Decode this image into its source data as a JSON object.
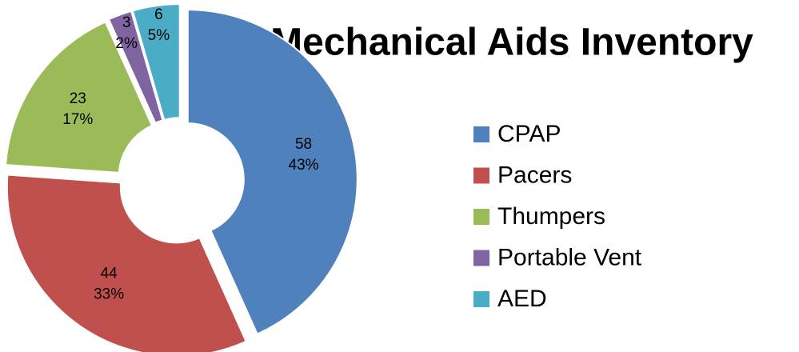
{
  "chart_data": {
    "type": "donut",
    "title": "Mechanical Aids Inventory",
    "categories": [
      "CPAP",
      "Pacers",
      "Thumpers",
      "Portable Vent",
      "AED"
    ],
    "values": [
      58,
      44,
      23,
      3,
      6
    ],
    "percent_labels": [
      "43%",
      "33%",
      "17%",
      "2%",
      "5%"
    ],
    "colors": [
      "#4f81bd",
      "#c0504d",
      "#9bbb59",
      "#8064a2",
      "#4bacc6"
    ],
    "legend": "right"
  }
}
